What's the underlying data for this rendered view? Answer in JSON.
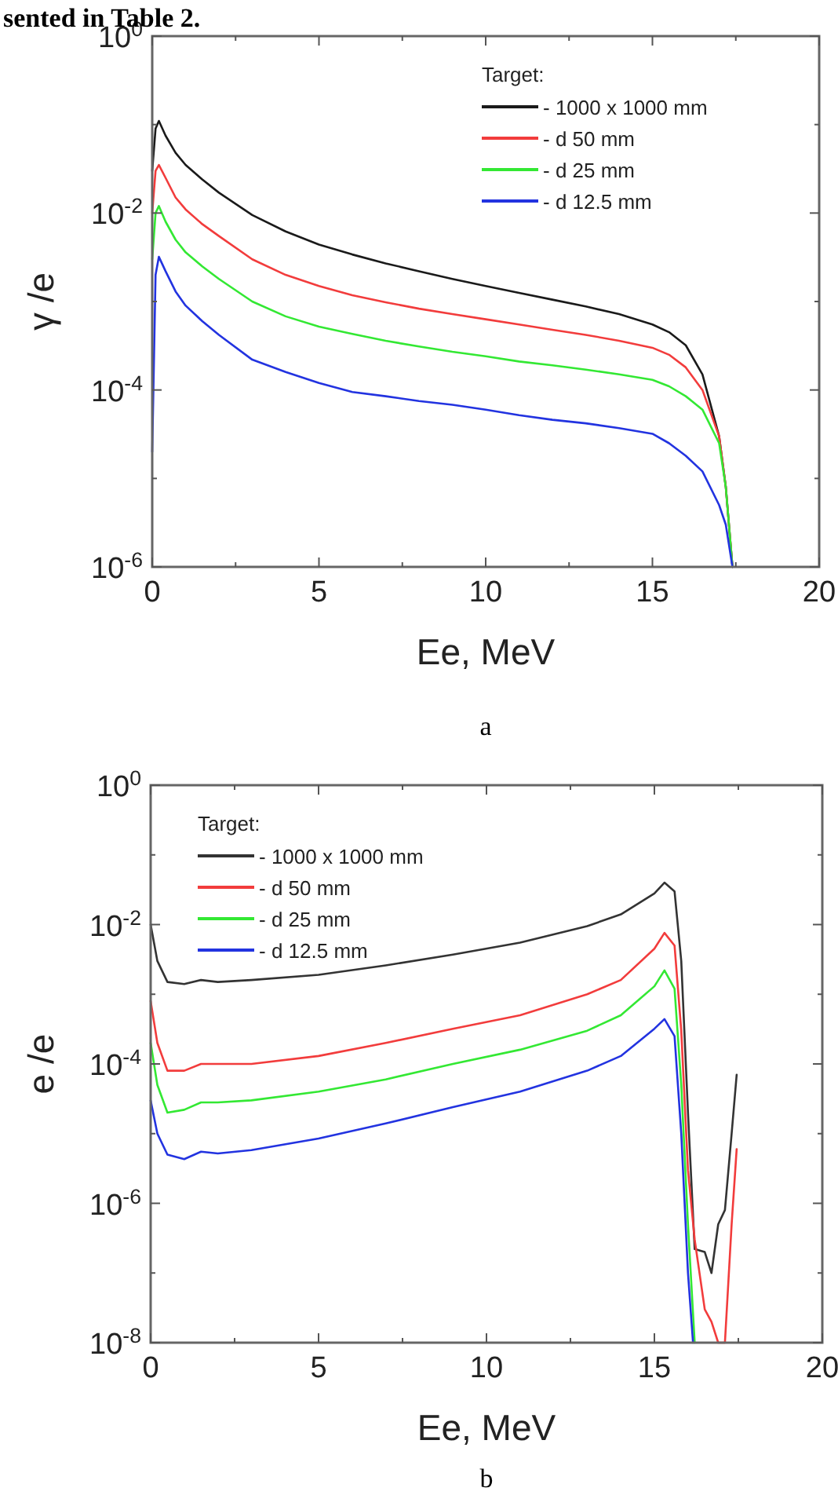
{
  "chart_data": [
    {
      "type": "line",
      "annotations": [
        "sented in Table 2.",
        "a"
      ],
      "xlabel": "Ee, MeV",
      "ylabel": "γ /e",
      "legend_title": "Target:",
      "legend": "top right",
      "log": true,
      "grid": false,
      "line_style": "solid",
      "marker": "none",
      "x": [
        0,
        0.1,
        0.2,
        0.4,
        0.7,
        1,
        1.5,
        2,
        3,
        4,
        5,
        6,
        7,
        8,
        9,
        10,
        11,
        12,
        13,
        14,
        15,
        15.5,
        16,
        16.5,
        17,
        17.2,
        17.4
      ],
      "xlim": [
        0,
        20
      ],
      "xticks": [
        0,
        {
          "value": 2.5,
          "label": null
        },
        5,
        {
          "value": 7.5,
          "label": null
        },
        10,
        {
          "value": 12.5,
          "label": null
        },
        15,
        {
          "value": 17.5,
          "label": null
        },
        20
      ],
      "ylim": [
        1e-06,
        1
      ],
      "yticks": [
        {
          "value": 1,
          "label": "10$^{0}$"
        },
        {
          "value": 0.1,
          "label": null
        },
        {
          "value": 0.01,
          "label": "10$^{-2}$"
        },
        {
          "value": 0.001,
          "label": null
        },
        {
          "value": 0.0001,
          "label": "10$^{-4}$"
        },
        {
          "value": 1e-05,
          "label": null
        },
        {
          "value": 1e-06,
          "label": "10$^{-6}$"
        }
      ],
      "series": [
        {
          "name": "- 1000 x 1000 mm",
          "color": "#1a1a1a",
          "values": [
            0.03,
            0.09,
            0.11,
            0.075,
            0.048,
            0.035,
            0.024,
            0.017,
            0.0095,
            0.0062,
            0.0044,
            0.0034,
            0.0027,
            0.0022,
            0.0018,
            0.0015,
            0.00125,
            0.00105,
            0.00088,
            0.00072,
            0.00055,
            0.00045,
            0.00032,
            0.00015,
            3e-05,
            8e-06,
            1e-06
          ]
        },
        {
          "name": "- d 50 mm",
          "color": "#f23c3c",
          "values": [
            0.01,
            0.03,
            0.035,
            0.025,
            0.015,
            0.011,
            0.0075,
            0.0055,
            0.003,
            0.002,
            0.0015,
            0.00118,
            0.00098,
            0.00083,
            0.00072,
            0.00063,
            0.00055,
            0.00048,
            0.00042,
            0.00036,
            0.0003,
            0.00025,
            0.00018,
            0.0001,
            3e-05,
            8e-06,
            1e-06
          ]
        },
        {
          "name": "- d 25 mm",
          "color": "#33e833",
          "values": [
            0.003,
            0.01,
            0.012,
            0.008,
            0.005,
            0.0036,
            0.0025,
            0.0018,
            0.001,
            0.00068,
            0.00052,
            0.00043,
            0.00036,
            0.00031,
            0.00027,
            0.00024,
            0.00021,
            0.00019,
            0.00017,
            0.00015,
            0.00013,
            0.00011,
            8.5e-05,
            6e-05,
            2.5e-05,
            8e-06,
            1e-06
          ]
        },
        {
          "name": "- d 12.5 mm",
          "color": "#2233e0",
          "values": [
            2e-05,
            0.002,
            0.0032,
            0.0022,
            0.0013,
            0.0009,
            0.0006,
            0.00042,
            0.00022,
            0.00016,
            0.00012,
            9.5e-05,
            8.5e-05,
            7.5e-05,
            6.8e-05,
            6e-05,
            5.2e-05,
            4.6e-05,
            4.2e-05,
            3.7e-05,
            3.2e-05,
            2.5e-05,
            1.8e-05,
            1.2e-05,
            5e-06,
            3e-06,
            1e-06
          ]
        }
      ]
    },
    {
      "type": "line",
      "annotations": [
        "b"
      ],
      "xlabel": "Ee, MeV",
      "ylabel": "e /e",
      "legend_title": "Target:",
      "legend": "top left",
      "log": true,
      "grid": false,
      "line_style": "solid",
      "marker": "none",
      "xlim": [
        0,
        20
      ],
      "xticks": [
        0,
        {
          "value": 2.5,
          "label": null
        },
        5,
        {
          "value": 7.5,
          "label": null
        },
        10,
        {
          "value": 12.5,
          "label": null
        },
        15,
        {
          "value": 17.5,
          "label": null
        },
        20
      ],
      "ylim": [
        1e-08,
        1
      ],
      "yticks": [
        {
          "value": 1,
          "label": "10$^{0}$"
        },
        {
          "value": 0.1,
          "label": null
        },
        {
          "value": 0.01,
          "label": "10$^{-2}$"
        },
        {
          "value": 0.001,
          "label": null
        },
        {
          "value": 0.0001,
          "label": "10$^{-4}$"
        },
        {
          "value": 1e-05,
          "label": null
        },
        {
          "value": 1e-06,
          "label": "10$^{-6}$"
        },
        {
          "value": 1e-07,
          "label": null
        },
        {
          "value": 1e-08,
          "label": "10$^{-8}$"
        }
      ],
      "series": [
        {
          "name": "- 1000 x 1000 mm",
          "color": "#333333",
          "x": [
            0,
            0.2,
            0.5,
            1,
            1.5,
            2,
            3,
            5,
            7,
            9,
            11,
            13,
            14,
            15,
            15.3,
            15.6,
            15.8,
            16,
            16.2,
            16.5,
            16.7,
            16.9,
            17.1,
            17.3,
            17.45
          ],
          "values": [
            0.01,
            0.003,
            0.0015,
            0.0014,
            0.0016,
            0.0015,
            0.0016,
            0.0019,
            0.0026,
            0.0037,
            0.0055,
            0.0095,
            0.014,
            0.028,
            0.04,
            0.03,
            0.003,
            2e-05,
            2.2e-07,
            2e-07,
            1e-07,
            5e-07,
            8e-07,
            1e-05,
            7e-05
          ]
        },
        {
          "name": "- d 50 mm",
          "color": "#f23c3c",
          "x": [
            0,
            0.2,
            0.5,
            1,
            1.5,
            2,
            3,
            5,
            7,
            9,
            11,
            13,
            14,
            15,
            15.3,
            15.6,
            15.8,
            16,
            16.2,
            16.5,
            16.7,
            16.9,
            17.1,
            17.3,
            17.45
          ],
          "values": [
            0.0008,
            0.0002,
            8e-05,
            8e-05,
            0.0001,
            0.0001,
            0.0001,
            0.00013,
            0.0002,
            0.00032,
            0.0005,
            0.001,
            0.0016,
            0.0045,
            0.0076,
            0.005,
            0.0003,
            3e-06,
            3e-07,
            3e-08,
            2e-08,
            1e-08,
            1e-08,
            5e-07,
            6e-06
          ]
        },
        {
          "name": "- d 25 mm",
          "color": "#33e833",
          "x": [
            0,
            0.2,
            0.5,
            1,
            1.5,
            2,
            3,
            5,
            7,
            9,
            11,
            13,
            14,
            15,
            15.3,
            15.6,
            15.8,
            16,
            16.2
          ],
          "values": [
            0.0002,
            5e-05,
            2e-05,
            2.2e-05,
            2.8e-05,
            2.8e-05,
            3e-05,
            4e-05,
            6e-05,
            0.0001,
            0.00016,
            0.0003,
            0.0005,
            0.0013,
            0.0022,
            0.0012,
            5e-05,
            5e-07,
            1e-08
          ]
        },
        {
          "name": "- d 12.5 mm",
          "color": "#2233e0",
          "x": [
            0,
            0.2,
            0.5,
            1,
            1.5,
            2,
            3,
            5,
            7,
            9,
            11,
            13,
            14,
            15,
            15.3,
            15.6,
            15.8,
            16,
            16.15
          ],
          "values": [
            3e-05,
            1e-05,
            5e-06,
            4.3e-06,
            5.5e-06,
            5.2e-06,
            5.8e-06,
            8.5e-06,
            1.4e-05,
            2.4e-05,
            4e-05,
            8e-05,
            0.00013,
            0.00032,
            0.00044,
            0.00025,
            1e-05,
            1e-07,
            1e-08
          ]
        }
      ]
    }
  ]
}
